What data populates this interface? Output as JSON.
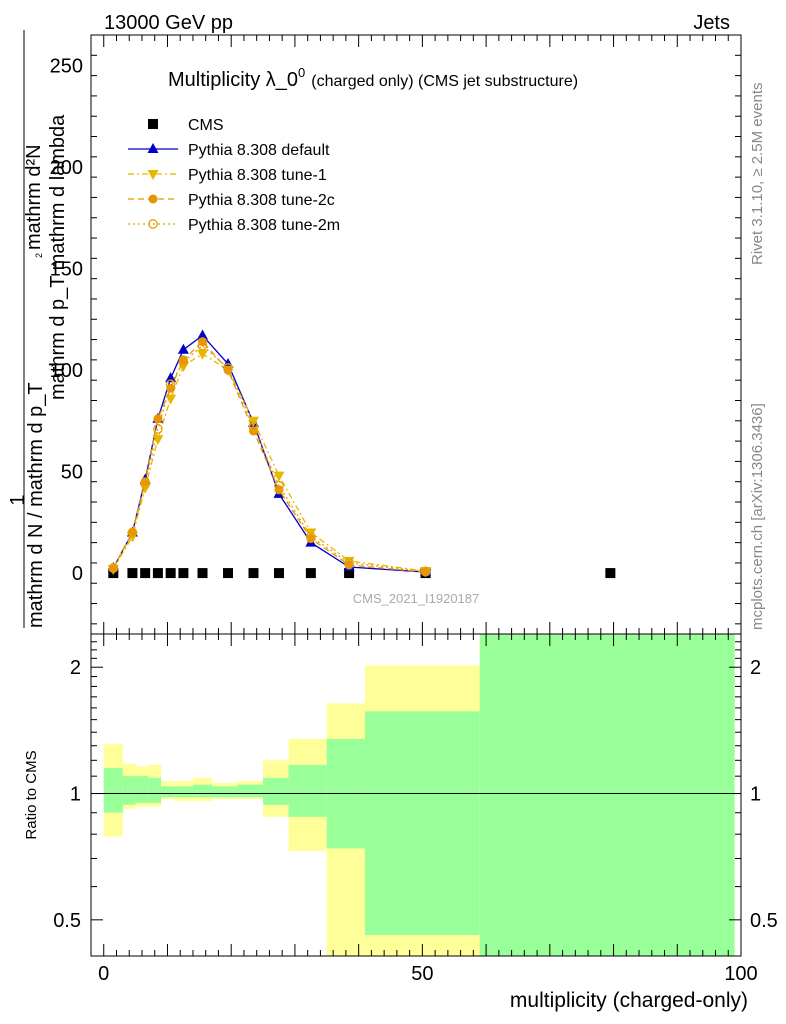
{
  "header": {
    "left": "13000 GeV pp",
    "right": "Jets"
  },
  "side_labels": {
    "rivet": "Rivet 3.1.10, ≥ 2.5M events",
    "mcplots": "mcplots.cern.ch [arXiv:1306.3436]"
  },
  "watermark": "CMS_2021_I1920187",
  "chart_data": [
    {
      "type": "line",
      "title": "Multiplicity λ_0⁰ (charged only) (CMS jet substructure)",
      "title_main": "Multiplicity λ_0",
      "title_sup": "0",
      "title_tail": "(charged only) (CMS jet substructure)",
      "ylabel_top": "1",
      "ylabel_top_denominator": "mathrm d N / mathrm d p_T",
      "ylabel_num": "mathrm d²N",
      "ylabel_den": "mathrm d p_T mathrm d lambda",
      "ylabel_full": "1/(mathrm d N / mathrm d p_T) · mathrm d²N / (mathrm d p_T mathrm d lambda)",
      "xlim": [
        -2,
        100
      ],
      "ylim": [
        -30,
        265
      ],
      "yticks": [
        0,
        50,
        100,
        150,
        200,
        250
      ],
      "legend_position": "top-left",
      "series": [
        {
          "name": "CMS",
          "color": "#000000",
          "marker": "square",
          "line": "none",
          "x": [
            1.5,
            4.5,
            6.5,
            8.5,
            10.5,
            12.5,
            15.5,
            19.5,
            23.5,
            27.5,
            32.5,
            38.5,
            50.5,
            79.5
          ],
          "y": [
            0,
            0,
            0,
            0,
            0,
            0,
            0,
            0,
            0,
            0,
            0,
            0,
            0,
            0
          ]
        },
        {
          "name": "Pythia 8.308 default",
          "color": "#0000cc",
          "marker": "triangle-up",
          "line": "solid",
          "x": [
            1.5,
            4.5,
            6.5,
            8.5,
            10.5,
            12.5,
            15.5,
            19.5,
            23.5,
            27.5,
            32.5,
            38.5,
            50.5
          ],
          "y": [
            2.5,
            20,
            46,
            76,
            96,
            110,
            117,
            103,
            74,
            39,
            15,
            3,
            0.5
          ]
        },
        {
          "name": "Pythia 8.308 tune-1",
          "color": "#e6b800",
          "marker": "triangle-down",
          "line": "dashdot",
          "x": [
            1.5,
            4.5,
            6.5,
            8.5,
            10.5,
            12.5,
            15.5,
            19.5,
            23.5,
            27.5,
            32.5,
            38.5,
            50.5
          ],
          "y": [
            2,
            18,
            42,
            66,
            86,
            102,
            108,
            100,
            75,
            48,
            20,
            6,
            1
          ]
        },
        {
          "name": "Pythia 8.308 tune-2c",
          "color": "#e69500",
          "marker": "circle",
          "line": "dashed",
          "x": [
            1.5,
            4.5,
            6.5,
            8.5,
            10.5,
            12.5,
            15.5,
            19.5,
            23.5,
            27.5,
            32.5,
            38.5,
            50.5
          ],
          "y": [
            2.5,
            20,
            45,
            76,
            91,
            105,
            114,
            100,
            70,
            41,
            17,
            4,
            0.5
          ]
        },
        {
          "name": "Pythia 8.308 tune-2m",
          "color": "#e6a000",
          "marker": "circle-open",
          "line": "dotted",
          "x": [
            1.5,
            4.5,
            6.5,
            8.5,
            10.5,
            12.5,
            15.5,
            19.5,
            23.5,
            27.5,
            32.5,
            38.5,
            50.5
          ],
          "y": [
            2.5,
            20,
            44,
            71,
            93,
            104,
            112,
            101,
            72,
            43,
            18,
            5,
            0.8
          ]
        }
      ]
    },
    {
      "type": "area",
      "ylabel": "Ratio to CMS",
      "xlabel": "multiplicity (charged-only)",
      "xlim": [
        -2,
        100
      ],
      "ylim": [
        0.41,
        2.4
      ],
      "yscale": "log",
      "yticks": [
        0.5,
        1,
        2
      ],
      "xticks": [
        0,
        50,
        100
      ],
      "reference_line": 1,
      "bins": [
        {
          "x0": 0,
          "x1": 3,
          "inner": [
            0.9,
            1.15
          ],
          "outer": [
            0.79,
            1.31
          ]
        },
        {
          "x0": 3,
          "x1": 5,
          "inner": [
            0.94,
            1.1
          ],
          "outer": [
            0.92,
            1.18
          ]
        },
        {
          "x0": 5,
          "x1": 7,
          "inner": [
            0.95,
            1.1
          ],
          "outer": [
            0.93,
            1.16
          ]
        },
        {
          "x0": 7,
          "x1": 9,
          "inner": [
            0.95,
            1.09
          ],
          "outer": [
            0.93,
            1.17
          ]
        },
        {
          "x0": 9,
          "x1": 11,
          "inner": [
            0.98,
            1.04
          ],
          "outer": [
            0.97,
            1.07
          ]
        },
        {
          "x0": 11,
          "x1": 14,
          "inner": [
            0.98,
            1.04
          ],
          "outer": [
            0.96,
            1.07
          ]
        },
        {
          "x0": 14,
          "x1": 17,
          "inner": [
            0.98,
            1.05
          ],
          "outer": [
            0.96,
            1.09
          ]
        },
        {
          "x0": 17,
          "x1": 21,
          "inner": [
            0.98,
            1.04
          ],
          "outer": [
            0.97,
            1.06
          ]
        },
        {
          "x0": 21,
          "x1": 25,
          "inner": [
            0.98,
            1.05
          ],
          "outer": [
            0.97,
            1.07
          ]
        },
        {
          "x0": 25,
          "x1": 29,
          "inner": [
            0.94,
            1.09
          ],
          "outer": [
            0.88,
            1.2
          ]
        },
        {
          "x0": 29,
          "x1": 35,
          "inner": [
            0.88,
            1.17
          ],
          "outer": [
            0.73,
            1.35
          ]
        },
        {
          "x0": 35,
          "x1": 41,
          "inner": [
            0.74,
            1.35
          ],
          "outer": [
            0.41,
            1.64
          ]
        },
        {
          "x0": 41,
          "x1": 59,
          "inner": [
            0.46,
            1.57
          ],
          "outer": [
            0.41,
            2.02
          ]
        },
        {
          "x0": 59,
          "x1": 99,
          "inner": [
            0.41,
            2.4
          ],
          "outer": [
            0.41,
            2.4
          ]
        }
      ]
    }
  ],
  "colors": {
    "inner_band": "#99ff99",
    "outer_band": "#ffff99",
    "axis": "#000000",
    "side_text": "#888888"
  }
}
